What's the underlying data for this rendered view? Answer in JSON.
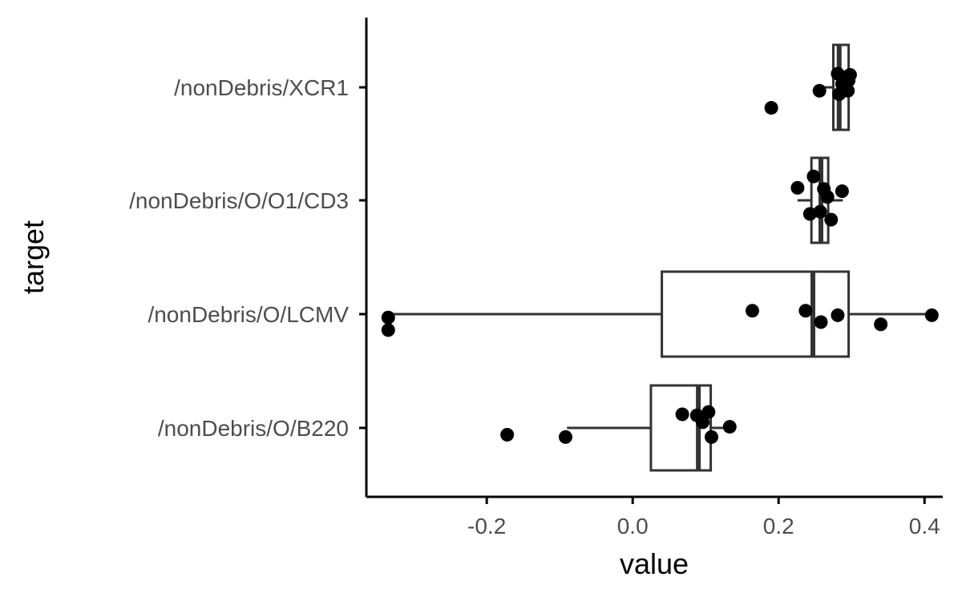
{
  "chart_data": {
    "type": "boxplot",
    "orientation": "horizontal",
    "xlabel": "value",
    "ylabel": "target",
    "xlim": [
      -0.365,
      0.425
    ],
    "x_ticks": [
      -0.2,
      0.0,
      0.2,
      0.4
    ],
    "x_tick_labels": [
      "-0.2",
      "0.0",
      "0.2",
      "0.4"
    ],
    "grid": false,
    "legend": "none",
    "categories": [
      "/nonDebris/XCR1",
      "/nonDebris/O/O1/CD3",
      "/nonDebris/O/LCMV",
      "/nonDebris/O/B220"
    ],
    "boxes": [
      {
        "category": "/nonDebris/XCR1",
        "whisker_low": 0.255,
        "q1": 0.275,
        "median": 0.283,
        "q3": 0.296,
        "whisker_high": 0.298
      },
      {
        "category": "/nonDebris/O/O1/CD3",
        "whisker_low": 0.226,
        "q1": 0.245,
        "median": 0.258,
        "q3": 0.268,
        "whisker_high": 0.288
      },
      {
        "category": "/nonDebris/O/LCMV",
        "whisker_low": -0.335,
        "q1": 0.04,
        "median": 0.247,
        "q3": 0.296,
        "whisker_high": 0.41
      },
      {
        "category": "/nonDebris/O/B220",
        "whisker_low": -0.09,
        "q1": 0.025,
        "median": 0.09,
        "q3": 0.107,
        "whisker_high": 0.133
      }
    ],
    "points": [
      {
        "category": "/nonDebris/XCR1",
        "x": 0.19,
        "jitter": -0.18
      },
      {
        "category": "/nonDebris/XCR1",
        "x": 0.256,
        "jitter": -0.03
      },
      {
        "category": "/nonDebris/XCR1",
        "x": 0.281,
        "jitter": 0.12
      },
      {
        "category": "/nonDebris/XCR1",
        "x": 0.283,
        "jitter": -0.06
      },
      {
        "category": "/nonDebris/XCR1",
        "x": 0.287,
        "jitter": 0.03
      },
      {
        "category": "/nonDebris/XCR1",
        "x": 0.292,
        "jitter": 0.09
      },
      {
        "category": "/nonDebris/XCR1",
        "x": 0.295,
        "jitter": -0.03
      },
      {
        "category": "/nonDebris/XCR1",
        "x": 0.298,
        "jitter": 0.11
      },
      {
        "category": "/nonDebris/XCR1",
        "x": 0.296,
        "jitter": 0.06
      },
      {
        "category": "/nonDebris/O/O1/CD3",
        "x": 0.226,
        "jitter": 0.11
      },
      {
        "category": "/nonDebris/O/O1/CD3",
        "x": 0.243,
        "jitter": -0.12
      },
      {
        "category": "/nonDebris/O/O1/CD3",
        "x": 0.248,
        "jitter": 0.21
      },
      {
        "category": "/nonDebris/O/O1/CD3",
        "x": 0.257,
        "jitter": -0.1
      },
      {
        "category": "/nonDebris/O/O1/CD3",
        "x": 0.262,
        "jitter": 0.1
      },
      {
        "category": "/nonDebris/O/O1/CD3",
        "x": 0.267,
        "jitter": 0.03
      },
      {
        "category": "/nonDebris/O/O1/CD3",
        "x": 0.272,
        "jitter": -0.17
      },
      {
        "category": "/nonDebris/O/O1/CD3",
        "x": 0.287,
        "jitter": 0.08
      },
      {
        "category": "/nonDebris/O/LCMV",
        "x": -0.335,
        "jitter": -0.03
      },
      {
        "category": "/nonDebris/O/LCMV",
        "x": -0.335,
        "jitter": -0.14
      },
      {
        "category": "/nonDebris/O/LCMV",
        "x": 0.164,
        "jitter": 0.03
      },
      {
        "category": "/nonDebris/O/LCMV",
        "x": 0.237,
        "jitter": 0.03
      },
      {
        "category": "/nonDebris/O/LCMV",
        "x": 0.258,
        "jitter": -0.07
      },
      {
        "category": "/nonDebris/O/LCMV",
        "x": 0.281,
        "jitter": -0.01
      },
      {
        "category": "/nonDebris/O/LCMV",
        "x": 0.34,
        "jitter": -0.09
      },
      {
        "category": "/nonDebris/O/LCMV",
        "x": 0.41,
        "jitter": -0.01
      },
      {
        "category": "/nonDebris/O/B220",
        "x": -0.172,
        "jitter": -0.06
      },
      {
        "category": "/nonDebris/O/B220",
        "x": -0.092,
        "jitter": -0.08
      },
      {
        "category": "/nonDebris/O/B220",
        "x": 0.068,
        "jitter": 0.12
      },
      {
        "category": "/nonDebris/O/B220",
        "x": 0.088,
        "jitter": 0.11
      },
      {
        "category": "/nonDebris/O/B220",
        "x": 0.096,
        "jitter": 0.05
      },
      {
        "category": "/nonDebris/O/B220",
        "x": 0.104,
        "jitter": 0.14
      },
      {
        "category": "/nonDebris/O/B220",
        "x": 0.108,
        "jitter": -0.08
      },
      {
        "category": "/nonDebris/O/B220",
        "x": 0.133,
        "jitter": 0.01
      }
    ],
    "colors": {
      "points": "#000000",
      "box_stroke": "#333333",
      "box_fill": "#ffffff",
      "tick_text": "#4d4d4d"
    }
  }
}
